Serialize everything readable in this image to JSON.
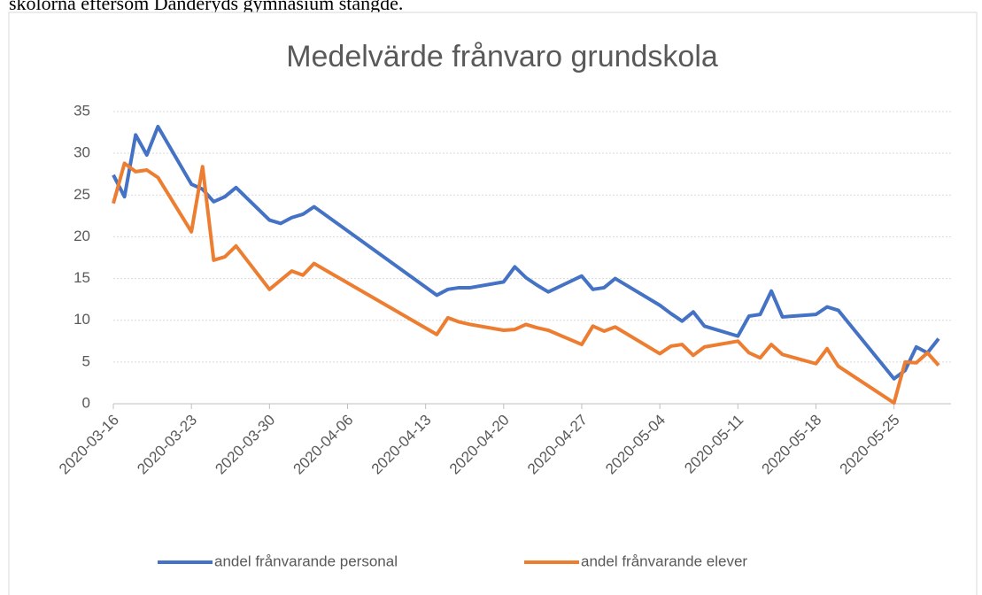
{
  "document_text": "skolorna eftersom Danderyds gymnasium stängde.",
  "chart_data": {
    "type": "line",
    "title": "Medelvärde frånvaro grundskola",
    "x": [
      "2020-03-16",
      "2020-03-17",
      "2020-03-18",
      "2020-03-19",
      "2020-03-20",
      "2020-03-23",
      "2020-03-24",
      "2020-03-25",
      "2020-03-26",
      "2020-03-27",
      "2020-03-30",
      "2020-03-31",
      "2020-04-01",
      "2020-04-02",
      "2020-04-03",
      "2020-04-14",
      "2020-04-15",
      "2020-04-16",
      "2020-04-17",
      "2020-04-20",
      "2020-04-21",
      "2020-04-22",
      "2020-04-23",
      "2020-04-24",
      "2020-04-27",
      "2020-04-28",
      "2020-04-29",
      "2020-04-30",
      "2020-05-04",
      "2020-05-05",
      "2020-05-06",
      "2020-05-07",
      "2020-05-08",
      "2020-05-11",
      "2020-05-12",
      "2020-05-13",
      "2020-05-14",
      "2020-05-15",
      "2020-05-18",
      "2020-05-19",
      "2020-05-20",
      "2020-05-25",
      "2020-05-26",
      "2020-05-27",
      "2020-05-28",
      "2020-05-29"
    ],
    "series": [
      {
        "name": "andel frånvarande personal",
        "color": "#4472c4",
        "values": [
          27.4,
          24.8,
          32.2,
          29.8,
          33.2,
          26.3,
          25.7,
          24.2,
          24.8,
          25.9,
          22.0,
          21.6,
          22.3,
          22.7,
          23.6,
          13.0,
          13.7,
          13.9,
          13.9,
          14.6,
          16.4,
          15.1,
          14.2,
          13.4,
          15.3,
          13.7,
          13.9,
          15.0,
          11.8,
          10.8,
          9.9,
          11.0,
          9.3,
          8.1,
          10.5,
          10.7,
          13.5,
          10.4,
          10.7,
          11.6,
          11.2,
          3.0,
          4.0,
          6.8,
          6.1,
          7.8
        ]
      },
      {
        "name": "andel frånvarande elever",
        "color": "#ed7d31",
        "values": [
          24.0,
          28.8,
          27.8,
          28.0,
          27.1,
          20.6,
          28.4,
          17.2,
          17.6,
          18.9,
          13.7,
          14.8,
          15.9,
          15.4,
          16.8,
          8.3,
          10.3,
          9.8,
          9.5,
          8.8,
          8.9,
          9.5,
          9.1,
          8.8,
          7.1,
          9.3,
          8.7,
          9.2,
          6.0,
          6.9,
          7.1,
          5.8,
          6.8,
          7.5,
          6.1,
          5.5,
          7.1,
          5.9,
          4.8,
          6.6,
          4.5,
          0.1,
          5.0,
          4.9,
          6.1,
          4.6
        ]
      }
    ],
    "xlim": [
      "2020-03-16",
      "2020-05-29"
    ],
    "xticks": [
      "2020-03-16",
      "2020-03-23",
      "2020-03-30",
      "2020-04-06",
      "2020-04-13",
      "2020-04-20",
      "2020-04-27",
      "2020-05-04",
      "2020-05-11",
      "2020-05-18",
      "2020-05-25"
    ],
    "ylim": [
      0,
      35
    ],
    "yticks": [
      0,
      5,
      10,
      15,
      20,
      25,
      30,
      35
    ],
    "grid": true,
    "legend": "bottom"
  }
}
